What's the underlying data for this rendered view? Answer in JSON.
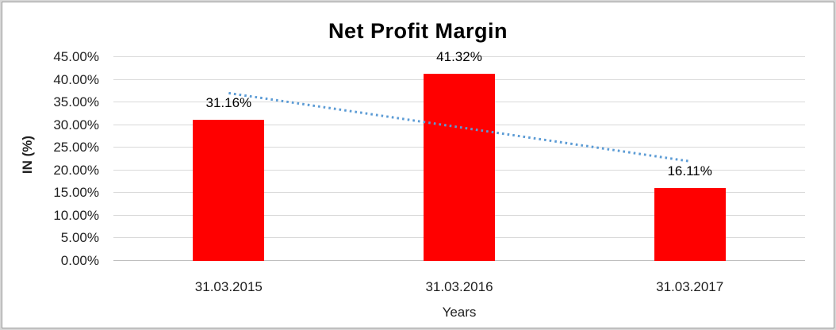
{
  "chart_data": {
    "type": "bar",
    "title": "Net Profit Margin",
    "categories": [
      "31.03.2015",
      "31.03.2016",
      "31.03.2017"
    ],
    "values": [
      31.16,
      41.32,
      16.11
    ],
    "data_labels": [
      "31.16%",
      "41.32%",
      "16.11%"
    ],
    "xlabel": "Years",
    "ylabel": "IN (%)",
    "ylim": [
      0,
      45
    ],
    "ytick_step": 5,
    "ytick_labels": [
      "0.00%",
      "5.00%",
      "10.00%",
      "15.00%",
      "20.00%",
      "25.00%",
      "30.00%",
      "35.00%",
      "40.00%",
      "45.00%"
    ],
    "grid": true,
    "legend": "none",
    "series_color": "#ff0000",
    "trendline": {
      "type": "linear",
      "style": "dotted",
      "color": "#5b9bd5",
      "start_value": 37.05,
      "end_value": 22.0
    }
  },
  "style": {
    "background": "#ffffff",
    "gridline_color": "#d9d9d9",
    "axis_line_color": "#bdbdbd",
    "text_color": "#1f1f1f",
    "title_color": "#000000"
  }
}
